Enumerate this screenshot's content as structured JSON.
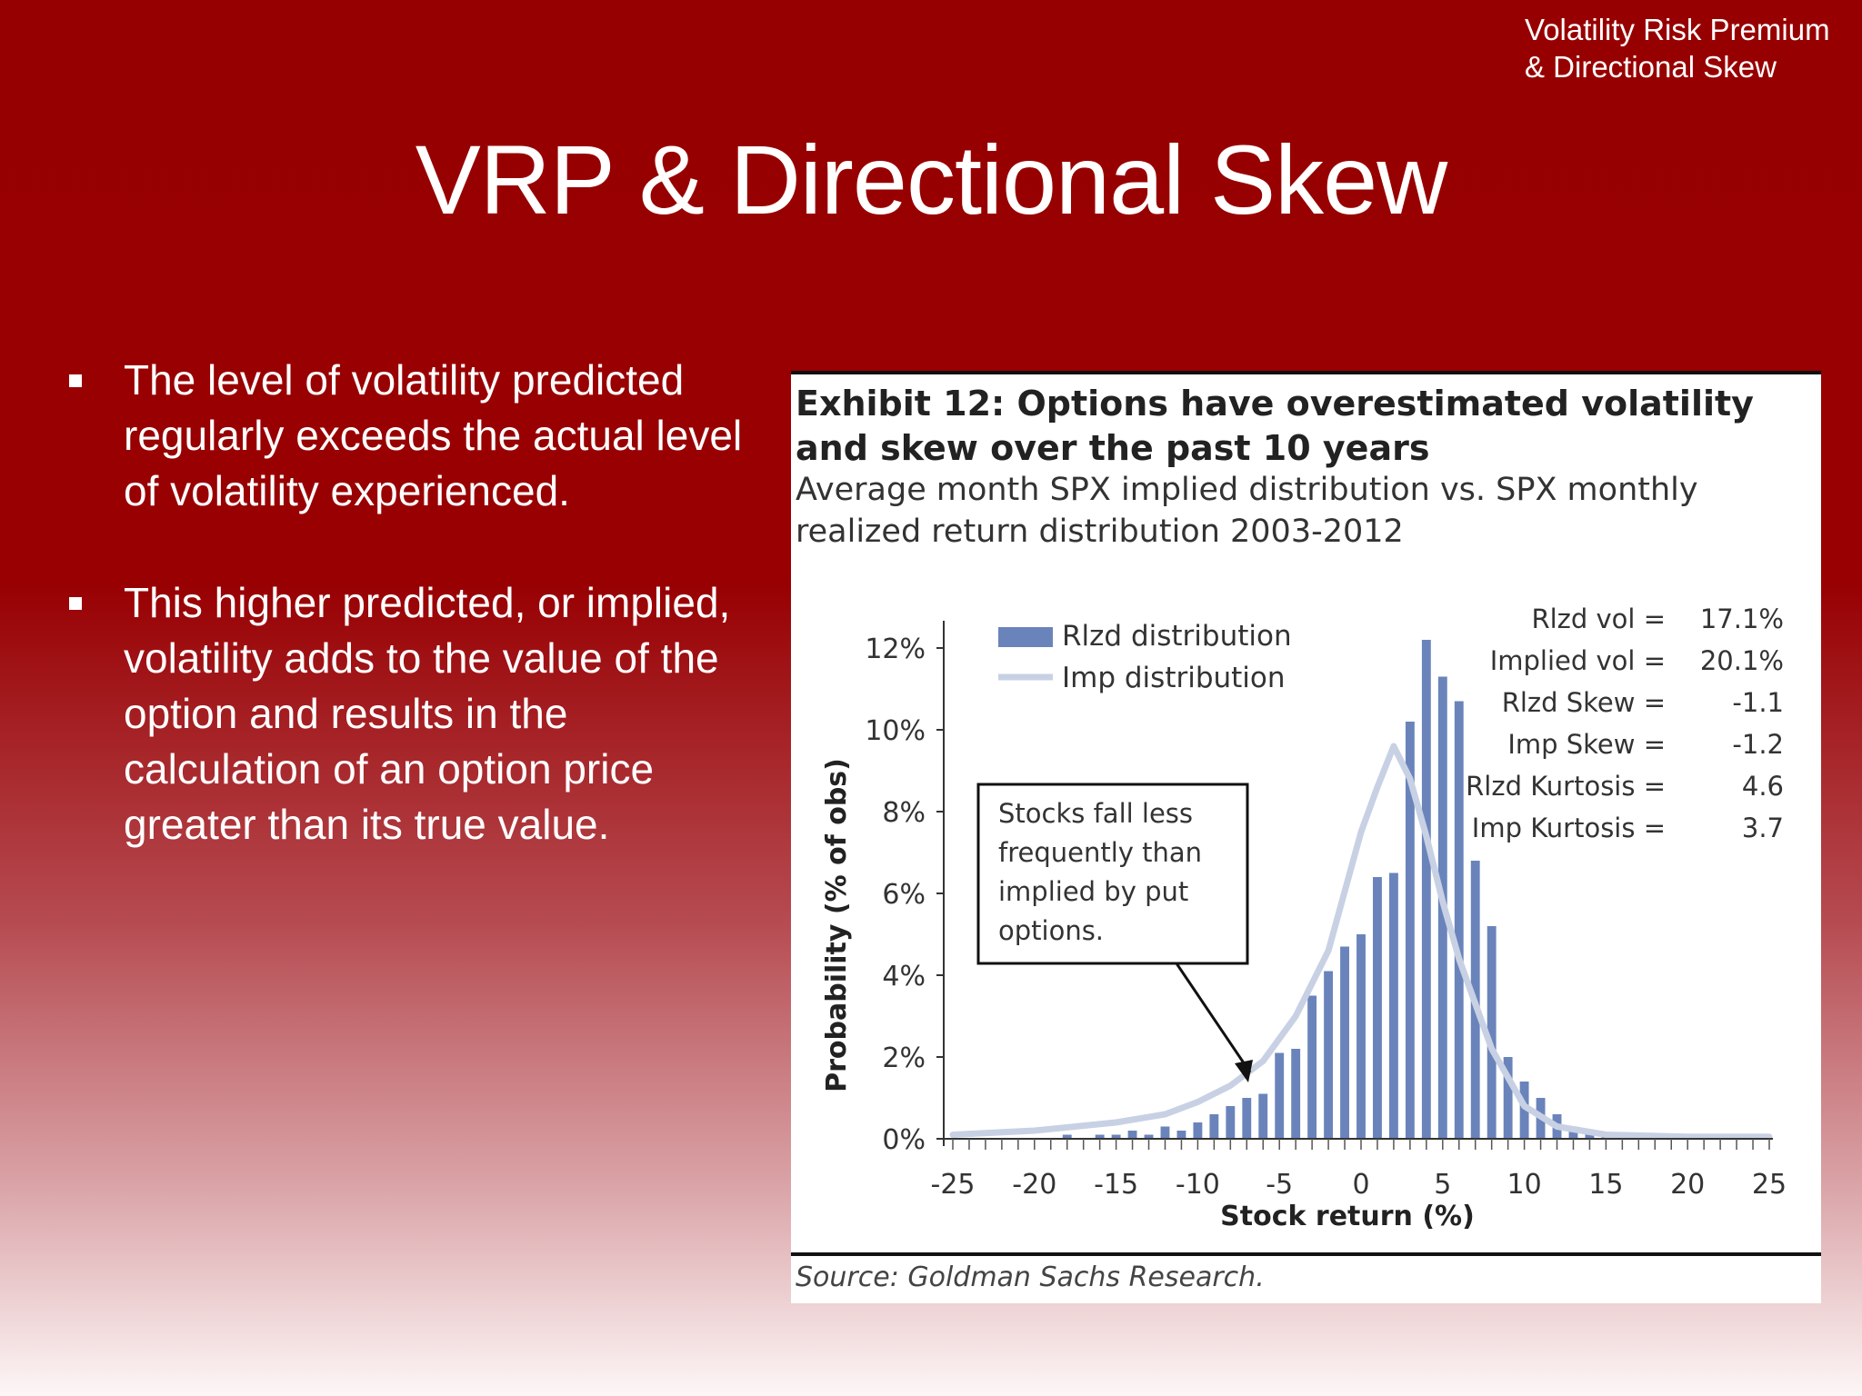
{
  "header": {
    "corner_line1": "Volatility Risk Premium",
    "corner_line2": "& Directional Skew",
    "title": "VRP & Directional Skew"
  },
  "bullets": [
    "The level of volatility predicted regularly exceeds the actual level of volatility experienced.",
    "This higher predicted, or implied, volatility adds to the value of the option and results in the calculation of an option price greater than its true value."
  ],
  "exhibit": {
    "title": "Exhibit 12: Options have overestimated volatility and skew over the past 10 years",
    "subtitle": "Average month SPX implied distribution vs. SPX monthly realized return distribution 2003-2012",
    "source": "Source: Goldman Sachs Research."
  },
  "colors": {
    "background": "#980002",
    "bar": "#6a84bb",
    "imp_line": "#c8d1e4"
  },
  "chart_data": {
    "type": "bar",
    "xlabel": "Stock return (%)",
    "ylabel": "Probability (% of obs)",
    "xlim": [
      -25,
      25
    ],
    "ylim": [
      0,
      12
    ],
    "x_ticks": [
      -25,
      -20,
      -15,
      -10,
      -5,
      0,
      5,
      10,
      15,
      20,
      25
    ],
    "y_ticks": [
      "0%",
      "2%",
      "4%",
      "6%",
      "8%",
      "10%",
      "12%"
    ],
    "legend": [
      "Rlzd distribution",
      "Imp distribution"
    ],
    "legend_position": "top-left",
    "series": [
      {
        "name": "Rlzd distribution",
        "type": "bar",
        "x": [
          -25,
          -24,
          -23,
          -22,
          -21,
          -20,
          -19,
          -18,
          -17,
          -16,
          -15,
          -14,
          -13,
          -12,
          -11,
          -10,
          -9,
          -8,
          -7,
          -6,
          -5,
          -4,
          -3,
          -2,
          -1,
          0,
          1,
          2,
          3,
          4,
          5,
          6,
          7,
          8,
          9,
          10,
          11,
          12,
          13,
          14,
          15,
          16,
          17,
          18,
          19,
          20,
          21,
          22,
          23,
          24,
          25
        ],
        "values": [
          0,
          0,
          0,
          0,
          0,
          0,
          0,
          0.1,
          0,
          0.1,
          0.1,
          0.2,
          0.1,
          0.3,
          0.2,
          0.4,
          0.6,
          0.8,
          1.0,
          1.1,
          2.1,
          2.2,
          3.5,
          4.1,
          4.7,
          5.0,
          6.4,
          6.5,
          10.2,
          12.2,
          11.3,
          10.7,
          6.8,
          5.2,
          2.0,
          1.4,
          1.0,
          0.6,
          0.3,
          0.15,
          0.1,
          0.1,
          0.05,
          0.1,
          0,
          0,
          0,
          0.1,
          0,
          0,
          0
        ]
      },
      {
        "name": "Imp distribution",
        "type": "line",
        "x": [
          -25,
          -20,
          -15,
          -12,
          -10,
          -8,
          -6,
          -4,
          -2,
          0,
          1,
          2,
          3,
          4,
          5,
          6,
          8,
          10,
          12,
          15,
          20,
          25
        ],
        "values": [
          0.1,
          0.2,
          0.4,
          0.6,
          0.9,
          1.3,
          1.9,
          3.0,
          4.6,
          7.5,
          8.6,
          9.6,
          8.8,
          7.4,
          5.8,
          4.4,
          2.2,
          0.8,
          0.3,
          0.1,
          0.05,
          0.05
        ]
      }
    ],
    "stats": [
      {
        "label": "Rlzd vol =",
        "value": "17.1%"
      },
      {
        "label": "Implied vol =",
        "value": "20.1%"
      },
      {
        "label": "Rlzd Skew =",
        "value": "-1.1"
      },
      {
        "label": "Imp Skew =",
        "value": "-1.2"
      },
      {
        "label": "Rlzd Kurtosis =",
        "value": "4.6"
      },
      {
        "label": "Imp Kurtosis =",
        "value": "3.7"
      }
    ],
    "annotation": "Stocks fall less frequently than implied by put options."
  }
}
